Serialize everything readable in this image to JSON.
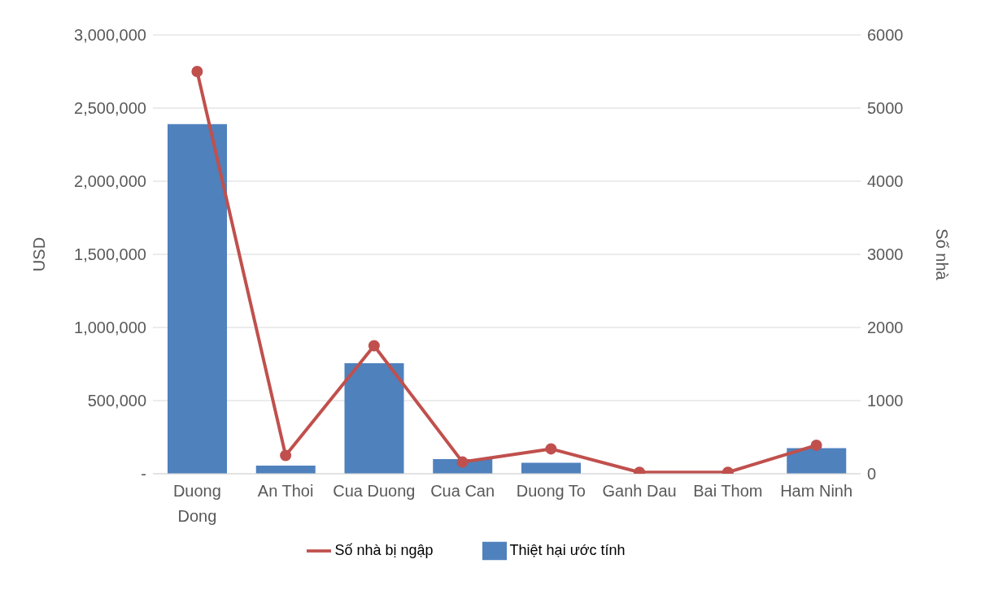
{
  "chart_data": {
    "type": "bar",
    "categories": [
      "Duong Dong",
      "An Thoi",
      "Cua Duong",
      "Cua Can",
      "Duong To",
      "Ganh Dau",
      "Bai Thom",
      "Ham Ninh"
    ],
    "series": [
      {
        "name": "Thiệt hại ước tính",
        "color": "#4f81bd",
        "values": [
          2390000,
          55000,
          755000,
          100000,
          75000,
          null,
          null,
          175000
        ]
      },
      {
        "name": "Số nhà bị ngập",
        "type": "line",
        "axis": "y2",
        "color": "#c0504d",
        "marker": "circle",
        "values": [
          5500,
          250,
          1750,
          160,
          340,
          20,
          20,
          390
        ]
      }
    ],
    "ylabel": "USD",
    "y2label": "Số nhà",
    "ylim": [
      0,
      3000000
    ],
    "yticks": [
      {
        "value": 0,
        "label": "-"
      },
      {
        "value": 500000,
        "label": "500,000"
      },
      {
        "value": 1000000,
        "label": "1,000,000"
      },
      {
        "value": 1500000,
        "label": "1,500,000"
      },
      {
        "value": 2000000,
        "label": "2,000,000"
      },
      {
        "value": 2500000,
        "label": "2,500,000"
      },
      {
        "value": 3000000,
        "label": "3,000,000"
      }
    ],
    "y2lim": [
      0,
      6000
    ],
    "y2ticks": [
      0,
      1000,
      2000,
      3000,
      4000,
      5000,
      6000
    ],
    "grid": "y",
    "legend": "bottom"
  }
}
